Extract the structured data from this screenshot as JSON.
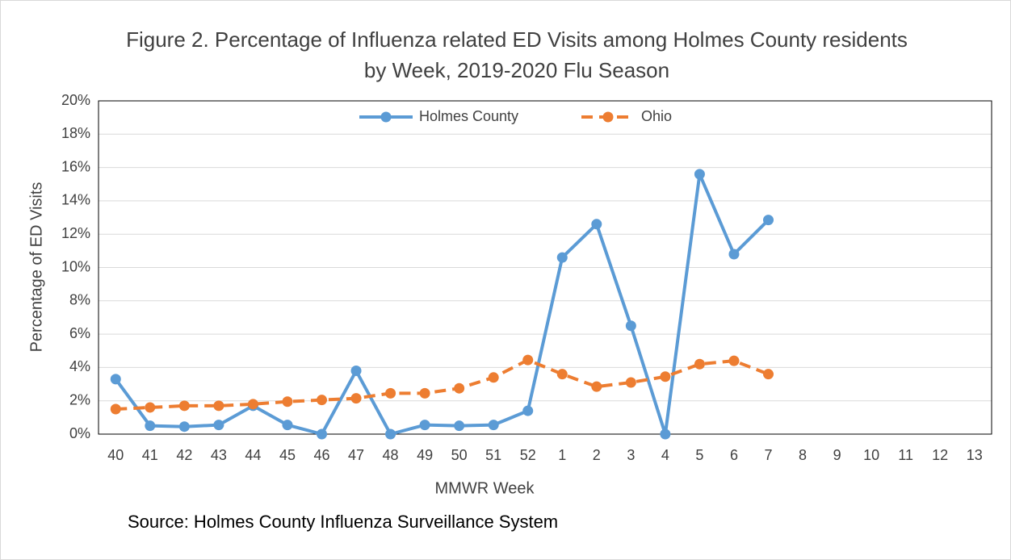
{
  "chart_data": {
    "type": "line",
    "title": "Figure 2. Percentage of Influenza related ED Visits among Holmes County residents by Week, 2019-2020 Flu Season",
    "x_label": "MMWR Week",
    "y_label": "Percentage of ED Visits",
    "source": "Source: Holmes County Influenza Surveillance System",
    "categories": [
      "40",
      "41",
      "42",
      "43",
      "44",
      "45",
      "46",
      "47",
      "48",
      "49",
      "50",
      "51",
      "52",
      "1",
      "2",
      "3",
      "4",
      "5",
      "6",
      "7",
      "8",
      "9",
      "10",
      "11",
      "12",
      "13"
    ],
    "series": [
      {
        "name": "Holmes County",
        "color": "#5b9bd5",
        "dash": false,
        "values": [
          3.3,
          0.5,
          0.45,
          0.55,
          1.7,
          0.55,
          0,
          3.8,
          0,
          0.55,
          0.5,
          0.55,
          1.4,
          10.6,
          12.6,
          6.5,
          0,
          15.6,
          10.8,
          12.85,
          null,
          null,
          null,
          null,
          null,
          null
        ]
      },
      {
        "name": "Ohio",
        "color": "#ed7d31",
        "dash": true,
        "values": [
          1.5,
          1.6,
          1.7,
          1.7,
          1.8,
          1.95,
          2.05,
          2.15,
          2.45,
          2.45,
          2.75,
          3.4,
          4.45,
          3.6,
          2.85,
          3.1,
          3.45,
          4.2,
          4.4,
          3.6,
          null,
          null,
          null,
          null,
          null,
          null
        ]
      }
    ],
    "ylim": [
      0,
      20
    ],
    "yticks": [
      {
        "value": 0,
        "label": "0%"
      },
      {
        "value": 2,
        "label": "2%"
      },
      {
        "value": 4,
        "label": "4%"
      },
      {
        "value": 6,
        "label": "6%"
      },
      {
        "value": 8,
        "label": "8%"
      },
      {
        "value": 10,
        "label": "10%"
      },
      {
        "value": 12,
        "label": "12%"
      },
      {
        "value": 14,
        "label": "14%"
      },
      {
        "value": 16,
        "label": "16%"
      },
      {
        "value": 18,
        "label": "18%"
      },
      {
        "value": 20,
        "label": "20%"
      }
    ],
    "grid": true,
    "legend": "top"
  }
}
